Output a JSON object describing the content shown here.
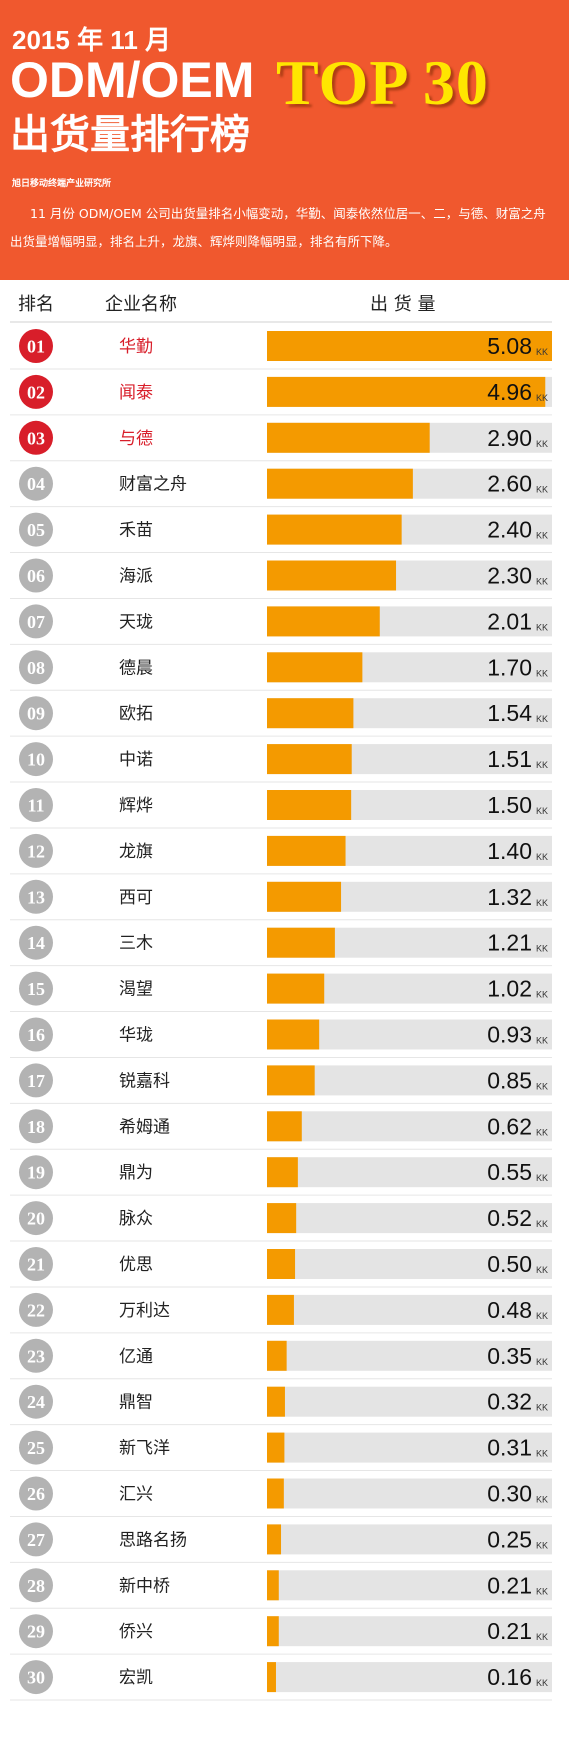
{
  "header": {
    "line1": "2015 年 11 月",
    "line2": "ODM/OEM",
    "line3": "出货量排行榜",
    "highlight": "TOP 30",
    "org": "旭日移动终端产业研究所",
    "description": "11 月份 ODM/OEM 公司出货量排名小幅变动，华勤、闻泰依然位居一、二，与德、财富之舟出货量增幅明显，排名上升，龙旗、辉烨则降幅明显，排名有所下降。"
  },
  "columns": {
    "rank": "排名",
    "company": "企业名称",
    "shipment": "出 货 量"
  },
  "colors": {
    "header_bg": "#f0582e",
    "highlight": "#ffe600",
    "bar": "#f49a00",
    "track": "#e4e4e4",
    "top_badge": "#d81e2a",
    "badge": "#b3b3b3",
    "top_name": "#d81e2a"
  },
  "chart_data": {
    "type": "bar",
    "orientation": "horizontal",
    "unit": "KK",
    "xlim": [
      0,
      5.08
    ],
    "grid": false,
    "legend": "none",
    "ranks": [
      "01",
      "02",
      "03",
      "04",
      "05",
      "06",
      "07",
      "08",
      "09",
      "10",
      "11",
      "12",
      "13",
      "14",
      "15",
      "16",
      "17",
      "18",
      "19",
      "20",
      "21",
      "22",
      "23",
      "24",
      "25",
      "26",
      "27",
      "28",
      "29",
      "30"
    ],
    "categories": [
      "华勤",
      "闻泰",
      "与德",
      "财富之舟",
      "禾苗",
      "海派",
      "天珑",
      "德晨",
      "欧拓",
      "中诺",
      "辉烨",
      "龙旗",
      "西可",
      "三木",
      "渴望",
      "华珑",
      "锐嘉科",
      "希姆通",
      "鼎为",
      "脉众",
      "优思",
      "万利达",
      "亿通",
      "鼎智",
      "新飞洋",
      "汇兴",
      "思路名扬",
      "新中桥",
      "侨兴",
      "宏凯"
    ],
    "values": [
      5.08,
      4.96,
      2.9,
      2.6,
      2.4,
      2.3,
      2.01,
      1.7,
      1.54,
      1.51,
      1.5,
      1.4,
      1.32,
      1.21,
      1.02,
      0.93,
      0.85,
      0.62,
      0.55,
      0.52,
      0.5,
      0.48,
      0.35,
      0.32,
      0.31,
      0.3,
      0.25,
      0.21,
      0.21,
      0.16
    ],
    "value_labels": [
      "5.08",
      "4.96",
      "2.90",
      "2.60",
      "2.40",
      "2.30",
      "2.01",
      "1.70",
      "1.54",
      "1.51",
      "1.50",
      "1.40",
      "1.32",
      "1.21",
      "1.02",
      "0.93",
      "0.85",
      "0.62",
      "0.55",
      "0.52",
      "0.50",
      "0.48",
      "0.35",
      "0.32",
      "0.31",
      "0.30",
      "0.25",
      "0.21",
      "0.21",
      "0.16"
    ],
    "highlighted_top": 3
  }
}
